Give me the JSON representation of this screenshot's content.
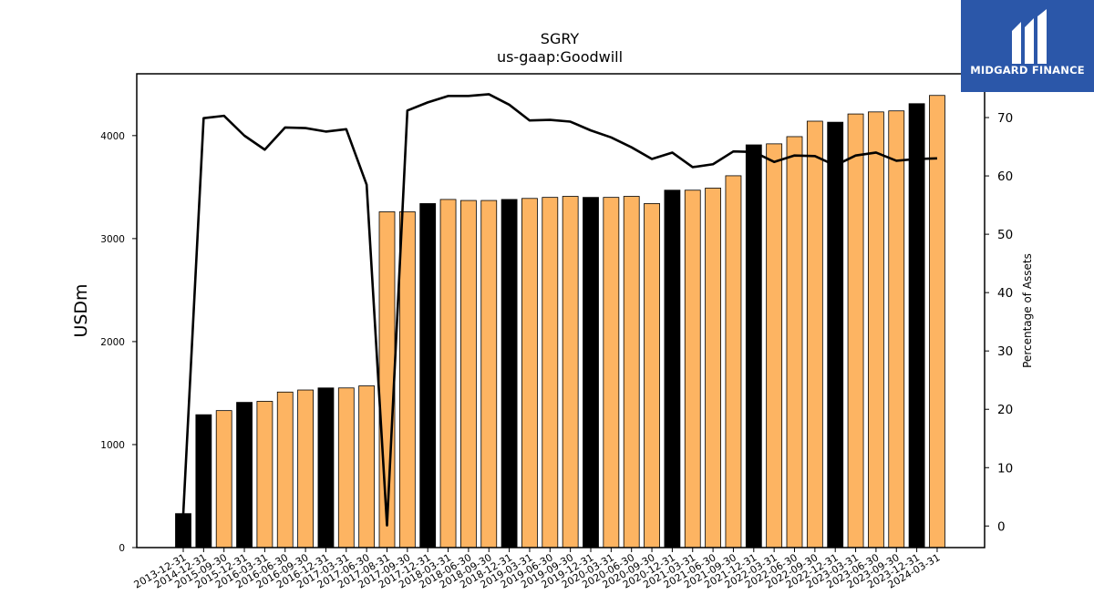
{
  "chart_data": {
    "type": "bar",
    "title": "SGRY",
    "subtitle": "us-gaap:Goodwill",
    "ylabel": "USDm",
    "y2label": "Percentage of Assets",
    "ylim": [
      0,
      4600
    ],
    "y2lim": [
      -3.7,
      77.5
    ],
    "yticks": [
      0,
      1000,
      2000,
      3000,
      4000
    ],
    "y2ticks": [
      0,
      10,
      20,
      30,
      40,
      50,
      60,
      70
    ],
    "categories": [
      "2013-12-31",
      "2014-12-31",
      "2015-09-30",
      "2015-12-31",
      "2016-03-31",
      "2016-06-30",
      "2016-09-30",
      "2016-12-31",
      "2017-03-31",
      "2017-06-30",
      "2017-08-31",
      "2017-09-30",
      "2017-12-31",
      "2018-03-31",
      "2018-06-30",
      "2018-09-30",
      "2018-12-31",
      "2019-03-31",
      "2019-06-30",
      "2019-09-30",
      "2019-12-31",
      "2020-03-31",
      "2020-06-30",
      "2020-09-30",
      "2020-12-31",
      "2021-03-31",
      "2021-06-30",
      "2021-09-30",
      "2021-12-31",
      "2022-03-31",
      "2022-06-30",
      "2022-09-30",
      "2022-12-31",
      "2023-03-31",
      "2023-06-30",
      "2023-09-30",
      "2023-12-31",
      "2024-03-31"
    ],
    "series": [
      {
        "type": "bar",
        "values": [
          330,
          1290,
          1330,
          1410,
          1420,
          1510,
          1530,
          1550,
          1550,
          1570,
          3260,
          3260,
          3340,
          3380,
          3370,
          3370,
          3380,
          3390,
          3400,
          3410,
          3400,
          3400,
          3410,
          3340,
          3470,
          3470,
          3490,
          3610,
          3910,
          3920,
          3990,
          4140,
          4130,
          4210,
          4230,
          4240,
          4310,
          4390
        ],
        "colors": [
          "#000000",
          "#000000",
          "#fdb462",
          "#000000",
          "#fdb462",
          "#fdb462",
          "#fdb462",
          "#000000",
          "#fdb462",
          "#fdb462",
          "#fdb462",
          "#fdb462",
          "#000000",
          "#fdb462",
          "#fdb462",
          "#fdb462",
          "#000000",
          "#fdb462",
          "#fdb462",
          "#fdb462",
          "#000000",
          "#fdb462",
          "#fdb462",
          "#fdb462",
          "#000000",
          "#fdb462",
          "#fdb462",
          "#fdb462",
          "#000000",
          "#fdb462",
          "#fdb462",
          "#fdb462",
          "#000000",
          "#fdb462",
          "#fdb462",
          "#fdb462",
          "#000000",
          "#fdb462"
        ]
      },
      {
        "type": "line",
        "axis": "right",
        "color": "#000000",
        "values": [
          2.0,
          69.9,
          70.3,
          66.9,
          64.5,
          68.3,
          68.2,
          67.6,
          68.0,
          58.5,
          0.1,
          71.2,
          72.6,
          73.7,
          73.7,
          74.0,
          72.2,
          69.5,
          69.6,
          69.3,
          67.8,
          66.6,
          64.9,
          62.9,
          64.0,
          61.5,
          62.0,
          64.2,
          64.1,
          62.4,
          63.5,
          63.4,
          61.8,
          63.5,
          64.0,
          62.6,
          62.9,
          63.0
        ]
      }
    ],
    "legend": "none",
    "grid": false
  },
  "branding": {
    "logo_text": "MIDGARD FINANCE",
    "logo_icon": "midgard-finance-logo-icon",
    "logo_bg": "#2b57a9"
  }
}
